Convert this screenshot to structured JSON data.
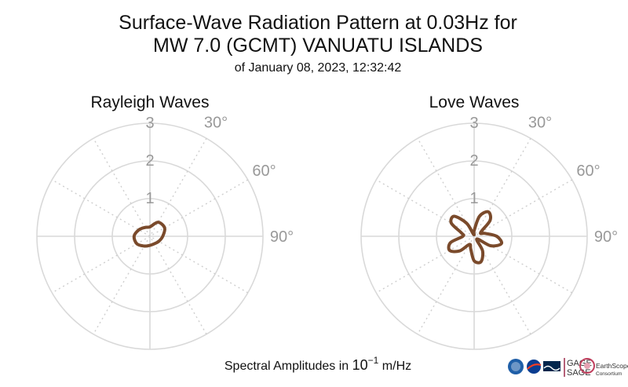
{
  "title_line1": "Surface-Wave Radiation Pattern at 0.03Hz for",
  "title_line2": "MW 7.0 (GCMT) VANUATU ISLANDS",
  "subtitle": "of January 08, 2023, 12:32:42",
  "footer": {
    "prefix": "Spectral Amplitudes in ",
    "base": "10",
    "exponent": "−1",
    "unit": " m/Hz"
  },
  "logos": {
    "gage": "GAGE",
    "sage": "SAGE",
    "earthscope": "EarthScope",
    "consortium": "Consortium"
  },
  "colors": {
    "pattern": "#7a4a2b",
    "grid": "#d9d9d9",
    "tick": "#999999"
  },
  "chart_data": [
    {
      "type": "polar-line",
      "title": "Rayleigh Waves",
      "r_max": 3,
      "r_ticks": [
        "1",
        "2",
        "3"
      ],
      "angle_ticks": [
        "30°",
        "60°",
        "90°"
      ],
      "grid": true,
      "series": [
        {
          "theta_deg": [
            0,
            30,
            60,
            90,
            120,
            150,
            180,
            210,
            240,
            270,
            300,
            330
          ],
          "r": [
            0.25,
            0.43,
            0.45,
            0.34,
            0.27,
            0.23,
            0.24,
            0.3,
            0.4,
            0.42,
            0.34,
            0.27
          ]
        }
      ]
    },
    {
      "type": "polar-line",
      "title": "Love Waves",
      "r_max": 3,
      "r_ticks": [
        "1",
        "2",
        "3"
      ],
      "angle_ticks": [
        "30°",
        "60°",
        "90°"
      ],
      "grid": true,
      "series": [
        {
          "theta_deg": [
            0,
            15,
            30,
            45,
            60,
            75,
            90,
            105,
            120,
            135,
            150,
            165,
            180,
            195,
            210,
            225,
            240,
            255,
            270,
            285,
            300,
            315,
            330,
            345
          ],
          "r": [
            0.15,
            0.55,
            0.75,
            0.6,
            0.2,
            0.3,
            0.6,
            0.75,
            0.5,
            0.1,
            0.45,
            0.7,
            0.65,
            0.35,
            0.25,
            0.55,
            0.75,
            0.65,
            0.3,
            0.35,
            0.7,
            0.75,
            0.4,
            0.05
          ]
        }
      ]
    }
  ]
}
